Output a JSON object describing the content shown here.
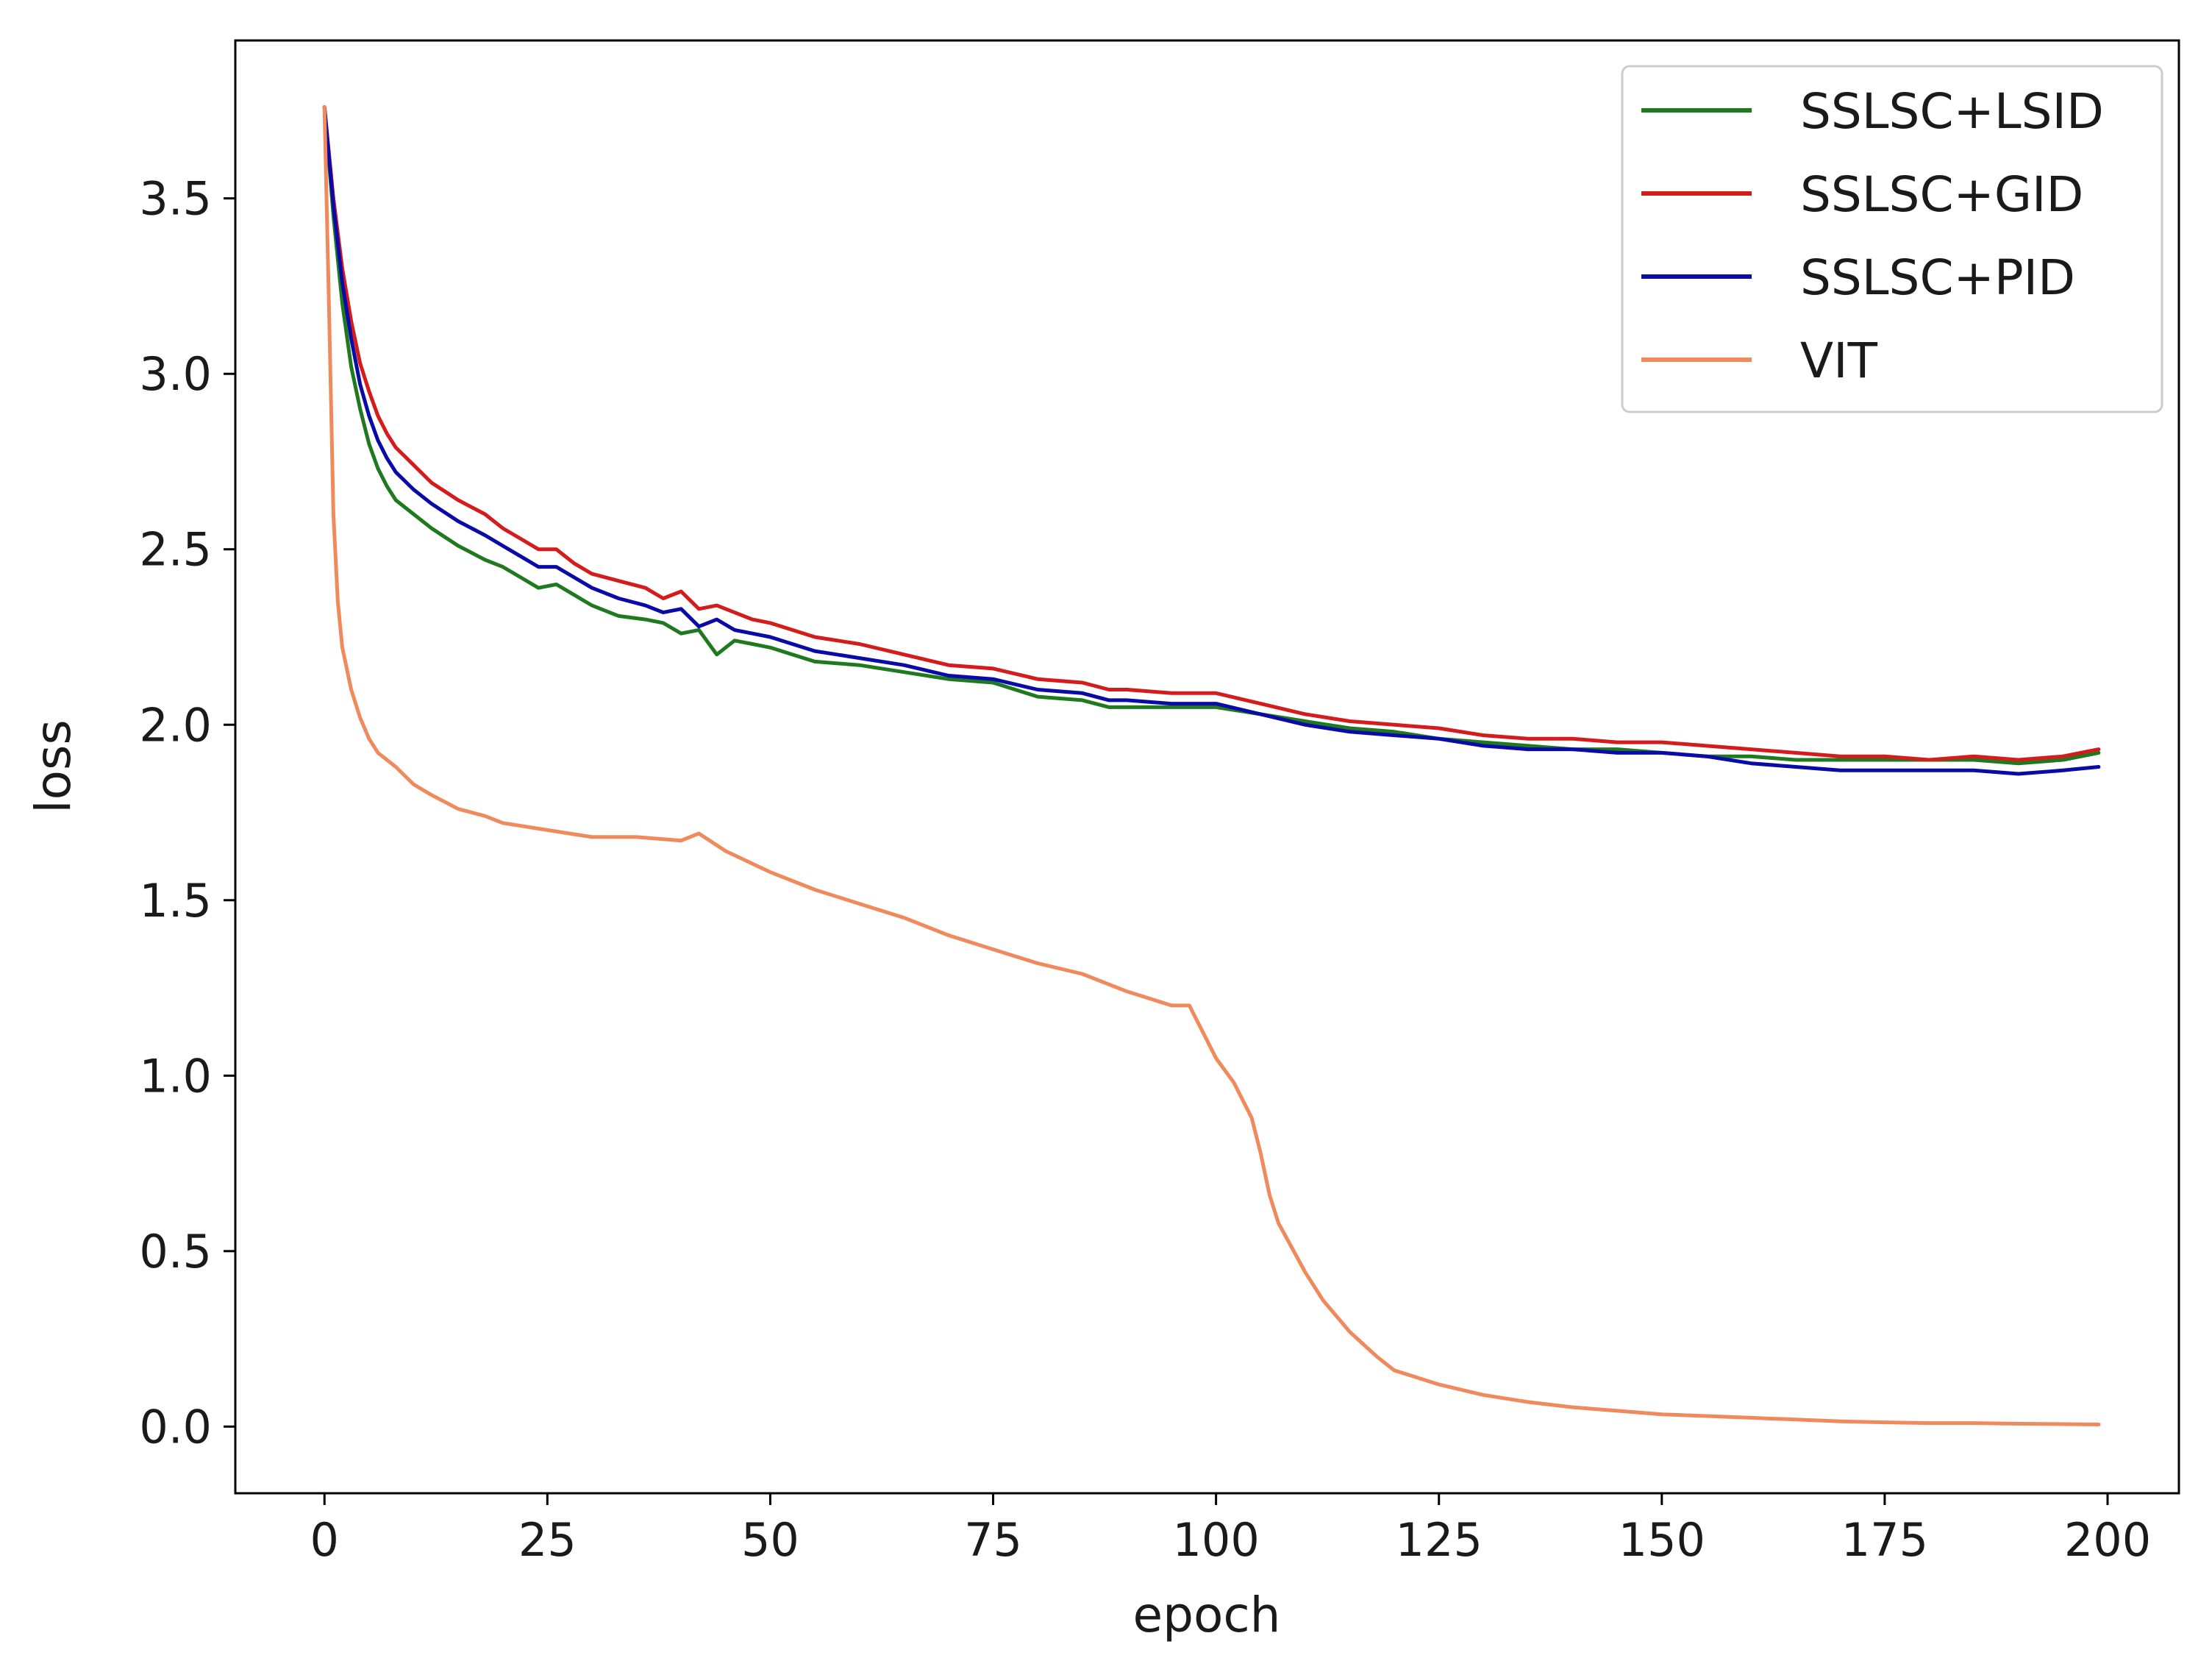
{
  "chart_data": {
    "type": "line",
    "title": "",
    "xlabel": "epoch",
    "ylabel": "loss",
    "xlim": [
      -10,
      208
    ],
    "ylim": [
      -0.19,
      3.95
    ],
    "xticks": [
      0,
      25,
      50,
      75,
      100,
      125,
      150,
      175,
      200
    ],
    "yticks": [
      0.0,
      0.5,
      1.0,
      1.5,
      2.0,
      2.5,
      3.0,
      3.5
    ],
    "grid": false,
    "legend_position": "top-right",
    "series": [
      {
        "name": "SSLSC+LSID",
        "color": "#1f7a1f",
        "points": [
          [
            0,
            3.76
          ],
          [
            1,
            3.45
          ],
          [
            2,
            3.2
          ],
          [
            3,
            3.02
          ],
          [
            4,
            2.9
          ],
          [
            5,
            2.8
          ],
          [
            6,
            2.73
          ],
          [
            7,
            2.68
          ],
          [
            8,
            2.64
          ],
          [
            10,
            2.6
          ],
          [
            12,
            2.56
          ],
          [
            15,
            2.51
          ],
          [
            18,
            2.47
          ],
          [
            20,
            2.45
          ],
          [
            22,
            2.42
          ],
          [
            24,
            2.39
          ],
          [
            26,
            2.4
          ],
          [
            28,
            2.37
          ],
          [
            30,
            2.34
          ],
          [
            33,
            2.31
          ],
          [
            36,
            2.3
          ],
          [
            38,
            2.29
          ],
          [
            40,
            2.26
          ],
          [
            42,
            2.27
          ],
          [
            44,
            2.2
          ],
          [
            46,
            2.24
          ],
          [
            48,
            2.23
          ],
          [
            50,
            2.22
          ],
          [
            55,
            2.18
          ],
          [
            60,
            2.17
          ],
          [
            65,
            2.15
          ],
          [
            70,
            2.13
          ],
          [
            75,
            2.12
          ],
          [
            80,
            2.08
          ],
          [
            85,
            2.07
          ],
          [
            88,
            2.05
          ],
          [
            90,
            2.05
          ],
          [
            95,
            2.05
          ],
          [
            100,
            2.05
          ],
          [
            105,
            2.03
          ],
          [
            110,
            2.01
          ],
          [
            115,
            1.99
          ],
          [
            120,
            1.98
          ],
          [
            125,
            1.96
          ],
          [
            130,
            1.95
          ],
          [
            135,
            1.94
          ],
          [
            140,
            1.93
          ],
          [
            145,
            1.93
          ],
          [
            150,
            1.92
          ],
          [
            155,
            1.91
          ],
          [
            160,
            1.91
          ],
          [
            165,
            1.9
          ],
          [
            170,
            1.9
          ],
          [
            175,
            1.9
          ],
          [
            180,
            1.9
          ],
          [
            185,
            1.9
          ],
          [
            190,
            1.89
          ],
          [
            195,
            1.9
          ],
          [
            199,
            1.92
          ]
        ]
      },
      {
        "name": "SSLSC+GID",
        "color": "#d41c1c",
        "points": [
          [
            0,
            3.76
          ],
          [
            1,
            3.5
          ],
          [
            2,
            3.3
          ],
          [
            3,
            3.15
          ],
          [
            4,
            3.03
          ],
          [
            5,
            2.95
          ],
          [
            6,
            2.88
          ],
          [
            7,
            2.83
          ],
          [
            8,
            2.79
          ],
          [
            10,
            2.74
          ],
          [
            12,
            2.69
          ],
          [
            15,
            2.64
          ],
          [
            18,
            2.6
          ],
          [
            20,
            2.56
          ],
          [
            22,
            2.53
          ],
          [
            24,
            2.5
          ],
          [
            26,
            2.5
          ],
          [
            28,
            2.46
          ],
          [
            30,
            2.43
          ],
          [
            33,
            2.41
          ],
          [
            36,
            2.39
          ],
          [
            38,
            2.36
          ],
          [
            40,
            2.38
          ],
          [
            42,
            2.33
          ],
          [
            44,
            2.34
          ],
          [
            46,
            2.32
          ],
          [
            48,
            2.3
          ],
          [
            50,
            2.29
          ],
          [
            55,
            2.25
          ],
          [
            60,
            2.23
          ],
          [
            65,
            2.2
          ],
          [
            70,
            2.17
          ],
          [
            75,
            2.16
          ],
          [
            80,
            2.13
          ],
          [
            85,
            2.12
          ],
          [
            88,
            2.1
          ],
          [
            90,
            2.1
          ],
          [
            95,
            2.09
          ],
          [
            100,
            2.09
          ],
          [
            105,
            2.06
          ],
          [
            110,
            2.03
          ],
          [
            115,
            2.01
          ],
          [
            120,
            2.0
          ],
          [
            125,
            1.99
          ],
          [
            130,
            1.97
          ],
          [
            135,
            1.96
          ],
          [
            140,
            1.96
          ],
          [
            145,
            1.95
          ],
          [
            150,
            1.95
          ],
          [
            155,
            1.94
          ],
          [
            160,
            1.93
          ],
          [
            165,
            1.92
          ],
          [
            170,
            1.91
          ],
          [
            175,
            1.91
          ],
          [
            180,
            1.9
          ],
          [
            185,
            1.91
          ],
          [
            190,
            1.9
          ],
          [
            195,
            1.91
          ],
          [
            199,
            1.93
          ]
        ]
      },
      {
        "name": "SSLSC+PID",
        "color": "#0a0aa8",
        "points": [
          [
            0,
            3.76
          ],
          [
            1,
            3.48
          ],
          [
            2,
            3.26
          ],
          [
            3,
            3.1
          ],
          [
            4,
            2.97
          ],
          [
            5,
            2.88
          ],
          [
            6,
            2.81
          ],
          [
            7,
            2.76
          ],
          [
            8,
            2.72
          ],
          [
            10,
            2.67
          ],
          [
            12,
            2.63
          ],
          [
            15,
            2.58
          ],
          [
            18,
            2.54
          ],
          [
            20,
            2.51
          ],
          [
            22,
            2.48
          ],
          [
            24,
            2.45
          ],
          [
            26,
            2.45
          ],
          [
            28,
            2.42
          ],
          [
            30,
            2.39
          ],
          [
            33,
            2.36
          ],
          [
            36,
            2.34
          ],
          [
            38,
            2.32
          ],
          [
            40,
            2.33
          ],
          [
            42,
            2.28
          ],
          [
            44,
            2.3
          ],
          [
            46,
            2.27
          ],
          [
            48,
            2.26
          ],
          [
            50,
            2.25
          ],
          [
            55,
            2.21
          ],
          [
            60,
            2.19
          ],
          [
            65,
            2.17
          ],
          [
            70,
            2.14
          ],
          [
            75,
            2.13
          ],
          [
            80,
            2.1
          ],
          [
            85,
            2.09
          ],
          [
            88,
            2.07
          ],
          [
            90,
            2.07
          ],
          [
            95,
            2.06
          ],
          [
            100,
            2.06
          ],
          [
            105,
            2.03
          ],
          [
            110,
            2.0
          ],
          [
            115,
            1.98
          ],
          [
            120,
            1.97
          ],
          [
            125,
            1.96
          ],
          [
            130,
            1.94
          ],
          [
            135,
            1.93
          ],
          [
            140,
            1.93
          ],
          [
            145,
            1.92
          ],
          [
            150,
            1.92
          ],
          [
            155,
            1.91
          ],
          [
            160,
            1.89
          ],
          [
            165,
            1.88
          ],
          [
            170,
            1.87
          ],
          [
            175,
            1.87
          ],
          [
            180,
            1.87
          ],
          [
            185,
            1.87
          ],
          [
            190,
            1.86
          ],
          [
            195,
            1.87
          ],
          [
            199,
            1.88
          ]
        ]
      },
      {
        "name": "VIT",
        "color": "#f08a5d",
        "points": [
          [
            0,
            3.76
          ],
          [
            0.5,
            3.2
          ],
          [
            1,
            2.6
          ],
          [
            1.5,
            2.35
          ],
          [
            2,
            2.22
          ],
          [
            3,
            2.1
          ],
          [
            4,
            2.02
          ],
          [
            5,
            1.96
          ],
          [
            6,
            1.92
          ],
          [
            8,
            1.88
          ],
          [
            10,
            1.83
          ],
          [
            12,
            1.8
          ],
          [
            15,
            1.76
          ],
          [
            18,
            1.74
          ],
          [
            20,
            1.72
          ],
          [
            25,
            1.7
          ],
          [
            30,
            1.68
          ],
          [
            35,
            1.68
          ],
          [
            40,
            1.67
          ],
          [
            42,
            1.69
          ],
          [
            45,
            1.64
          ],
          [
            50,
            1.58
          ],
          [
            55,
            1.53
          ],
          [
            60,
            1.49
          ],
          [
            65,
            1.45
          ],
          [
            70,
            1.4
          ],
          [
            75,
            1.36
          ],
          [
            80,
            1.32
          ],
          [
            85,
            1.29
          ],
          [
            90,
            1.24
          ],
          [
            95,
            1.2
          ],
          [
            97,
            1.2
          ],
          [
            98,
            1.15
          ],
          [
            100,
            1.05
          ],
          [
            102,
            0.98
          ],
          [
            104,
            0.88
          ],
          [
            105,
            0.78
          ],
          [
            106,
            0.66
          ],
          [
            107,
            0.58
          ],
          [
            110,
            0.44
          ],
          [
            112,
            0.36
          ],
          [
            115,
            0.27
          ],
          [
            118,
            0.2
          ],
          [
            120,
            0.16
          ],
          [
            125,
            0.12
          ],
          [
            130,
            0.09
          ],
          [
            135,
            0.07
          ],
          [
            140,
            0.055
          ],
          [
            145,
            0.045
          ],
          [
            150,
            0.035
          ],
          [
            155,
            0.03
          ],
          [
            160,
            0.025
          ],
          [
            165,
            0.02
          ],
          [
            170,
            0.015
          ],
          [
            175,
            0.012
          ],
          [
            180,
            0.01
          ],
          [
            185,
            0.01
          ],
          [
            190,
            0.008
          ],
          [
            195,
            0.007
          ],
          [
            199,
            0.006
          ]
        ]
      }
    ]
  }
}
